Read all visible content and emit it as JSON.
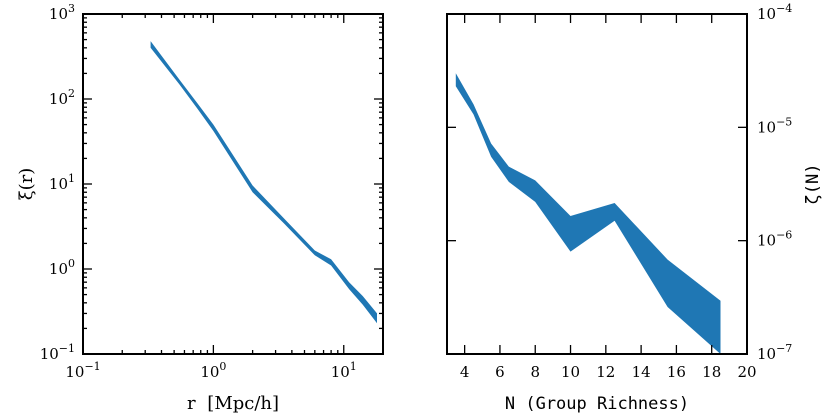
{
  "chart_data": [
    {
      "type": "area",
      "xscale": "log",
      "yscale": "log",
      "xlim": [
        0.1,
        20
      ],
      "ylim": [
        0.1,
        1000
      ],
      "xlabel_main": "r",
      "xlabel_unit": "[Mpc/h]",
      "ylabel": "ξ(r)",
      "x_ticks": [
        {
          "v": 0.1,
          "mant": "10",
          "exp": "−1"
        },
        {
          "v": 1,
          "mant": "10",
          "exp": "0"
        },
        {
          "v": 10,
          "mant": "10",
          "exp": "1"
        }
      ],
      "y_ticks": [
        {
          "v": 0.1,
          "mant": "10",
          "exp": "−1"
        },
        {
          "v": 1,
          "mant": "10",
          "exp": "0"
        },
        {
          "v": 10,
          "mant": "10",
          "exp": "1"
        },
        {
          "v": 100,
          "mant": "10",
          "exp": "2"
        },
        {
          "v": 1000,
          "mant": "10",
          "exp": "3"
        }
      ],
      "color": "#1f77b4",
      "band": [
        {
          "x": 0.33,
          "lo": 400,
          "hi": 480
        },
        {
          "x": 0.55,
          "lo": 148,
          "hi": 168
        },
        {
          "x": 0.75,
          "lo": 78,
          "hi": 90
        },
        {
          "x": 1.0,
          "lo": 42,
          "hi": 50
        },
        {
          "x": 2.0,
          "lo": 8.0,
          "hi": 9.6
        },
        {
          "x": 3.5,
          "lo": 3.4,
          "hi": 3.9
        },
        {
          "x": 6.0,
          "lo": 1.45,
          "hi": 1.65
        },
        {
          "x": 8.0,
          "lo": 1.1,
          "hi": 1.3
        },
        {
          "x": 11.0,
          "lo": 0.58,
          "hi": 0.7
        },
        {
          "x": 14.0,
          "lo": 0.38,
          "hi": 0.48
        },
        {
          "x": 18.0,
          "lo": 0.23,
          "hi": 0.3
        }
      ]
    },
    {
      "type": "area",
      "xscale": "linear",
      "yscale": "log",
      "xlim": [
        3,
        20
      ],
      "ylim": [
        1e-07,
        0.0001
      ],
      "xlabel": "N (Group Richness)",
      "ylabel": "ζ(N)",
      "x_ticks": [
        4,
        6,
        8,
        10,
        12,
        14,
        16,
        18,
        20
      ],
      "y_ticks": [
        {
          "v": 1e-07,
          "mant": "10",
          "exp": "−7"
        },
        {
          "v": 1e-06,
          "mant": "10",
          "exp": "−6"
        },
        {
          "v": 1e-05,
          "mant": "10",
          "exp": "−5"
        },
        {
          "v": 0.0001,
          "mant": "10",
          "exp": "−4"
        }
      ],
      "color": "#1f77b4",
      "band": [
        {
          "x": 3.5,
          "lo": 2.3e-05,
          "hi": 3e-05
        },
        {
          "x": 4.5,
          "lo": 1.3e-05,
          "hi": 1.6e-05
        },
        {
          "x": 5.5,
          "lo": 5.5e-06,
          "hi": 7.2e-06
        },
        {
          "x": 6.5,
          "lo": 3.3e-06,
          "hi": 4.5e-06
        },
        {
          "x": 8.0,
          "lo": 2.2e-06,
          "hi": 3.4e-06
        },
        {
          "x": 10.0,
          "lo": 8e-07,
          "hi": 1.65e-06
        },
        {
          "x": 12.5,
          "lo": 1.5e-06,
          "hi": 2.15e-06
        },
        {
          "x": 15.5,
          "lo": 2.6e-07,
          "hi": 6.8e-07
        },
        {
          "x": 18.5,
          "lo": 2e-08,
          "hi": 2.95e-07
        }
      ],
      "note": "band below 1e-7 is clipped at the axis bottom from x=15.5 onward"
    }
  ]
}
